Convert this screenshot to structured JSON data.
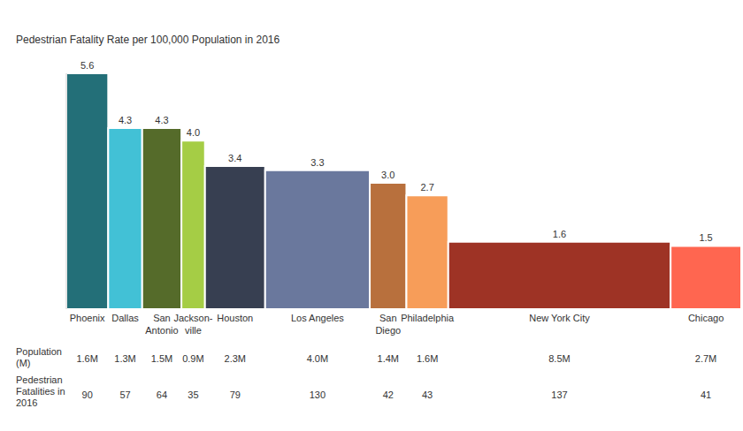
{
  "chart_data": {
    "type": "bar",
    "title": "Pedestrian Fatality Rate per 100,000 Population in 2016",
    "categories": [
      "Phoenix",
      "Dallas",
      "San Antonio",
      "Jackson-ville",
      "Houston",
      "Los Angeles",
      "San Diego",
      "Philadelphia",
      "New York City",
      "Chicago"
    ],
    "values": [
      5.6,
      4.3,
      4.3,
      4.0,
      3.4,
      3.3,
      3.0,
      2.7,
      1.6,
      1.5
    ],
    "value_labels": [
      "5.6",
      "4.3",
      "4.3",
      "4.0",
      "3.4",
      "3.3",
      "3.0",
      "2.7",
      "1.6",
      "1.5"
    ],
    "colors": [
      "#236F78",
      "#42C1D6",
      "#556B2A",
      "#A5CD45",
      "#373F51",
      "#6A789D",
      "#B8703D",
      "#F79D59",
      "#9E3325",
      "#FF6650"
    ],
    "population_label": "Population (M)",
    "population": [
      1.6,
      1.3,
      1.5,
      0.9,
      2.3,
      4.0,
      1.4,
      1.6,
      8.5,
      2.7
    ],
    "population_labels": [
      "1.6M",
      "1.3M",
      "1.5M",
      "0.9M",
      "2.3M",
      "4.0M",
      "1.4M",
      "1.6M",
      "8.5M",
      "2.7M"
    ],
    "fatalities_label": "Pedestrian Fatalities in 2016",
    "fatalities": [
      90,
      57,
      64,
      35,
      79,
      130,
      42,
      43,
      137,
      41
    ],
    "ylim": [
      0,
      5.6
    ],
    "data_labels": true,
    "tick_labels": false
  }
}
